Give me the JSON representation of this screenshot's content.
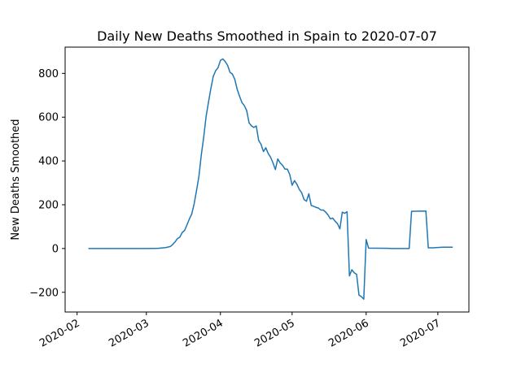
{
  "chart_data": {
    "type": "line",
    "title": "Daily New Deaths Smoothed in Spain to 2020-07-07",
    "xlabel": "",
    "ylabel": "New Deaths Smoothed",
    "x_ticks": [
      "2020-02",
      "2020-03",
      "2020-04",
      "2020-05",
      "2020-06",
      "2020-07"
    ],
    "y_ticks": [
      -200,
      0,
      200,
      400,
      600,
      800
    ],
    "xlim": [
      "2020-01-27",
      "2020-07-14"
    ],
    "ylim": [
      -290,
      920
    ],
    "grid": false,
    "color": "#1f77b4",
    "series": [
      {
        "points": [
          [
            "2020-02-06",
            0
          ],
          [
            "2020-02-15",
            0
          ],
          [
            "2020-02-25",
            0
          ],
          [
            "2020-03-01",
            0
          ],
          [
            "2020-03-06",
            1
          ],
          [
            "2020-03-09",
            4
          ],
          [
            "2020-03-11",
            9
          ],
          [
            "2020-03-12",
            18
          ],
          [
            "2020-03-13",
            30
          ],
          [
            "2020-03-14",
            45
          ],
          [
            "2020-03-15",
            52
          ],
          [
            "2020-03-16",
            73
          ],
          [
            "2020-03-17",
            83
          ],
          [
            "2020-03-18",
            108
          ],
          [
            "2020-03-19",
            135
          ],
          [
            "2020-03-20",
            158
          ],
          [
            "2020-03-21",
            204
          ],
          [
            "2020-03-22",
            265
          ],
          [
            "2020-03-23",
            330
          ],
          [
            "2020-03-24",
            428
          ],
          [
            "2020-03-25",
            508
          ],
          [
            "2020-03-26",
            603
          ],
          [
            "2020-03-27",
            668
          ],
          [
            "2020-03-28",
            731
          ],
          [
            "2020-03-29",
            786
          ],
          [
            "2020-03-30",
            812
          ],
          [
            "2020-03-31",
            826
          ],
          [
            "2020-04-01",
            859
          ],
          [
            "2020-04-02",
            866
          ],
          [
            "2020-04-03",
            854
          ],
          [
            "2020-04-04",
            837
          ],
          [
            "2020-04-05",
            805
          ],
          [
            "2020-04-06",
            797
          ],
          [
            "2020-04-07",
            773
          ],
          [
            "2020-04-08",
            728
          ],
          [
            "2020-04-09",
            696
          ],
          [
            "2020-04-10",
            667
          ],
          [
            "2020-04-11",
            653
          ],
          [
            "2020-04-12",
            630
          ],
          [
            "2020-04-13",
            574
          ],
          [
            "2020-04-14",
            560
          ],
          [
            "2020-04-15",
            553
          ],
          [
            "2020-04-16",
            560
          ],
          [
            "2020-04-17",
            494
          ],
          [
            "2020-04-18",
            476
          ],
          [
            "2020-04-19",
            443
          ],
          [
            "2020-04-20",
            460
          ],
          [
            "2020-04-21",
            434
          ],
          [
            "2020-04-22",
            417
          ],
          [
            "2020-04-23",
            391
          ],
          [
            "2020-04-24",
            361
          ],
          [
            "2020-04-25",
            409
          ],
          [
            "2020-04-26",
            391
          ],
          [
            "2020-04-27",
            380
          ],
          [
            "2020-04-28",
            363
          ],
          [
            "2020-04-29",
            363
          ],
          [
            "2020-04-30",
            339
          ],
          [
            "2020-05-01",
            289
          ],
          [
            "2020-05-02",
            310
          ],
          [
            "2020-05-03",
            294
          ],
          [
            "2020-05-04",
            270
          ],
          [
            "2020-05-05",
            255
          ],
          [
            "2020-05-06",
            224
          ],
          [
            "2020-05-07",
            216
          ],
          [
            "2020-05-08",
            250
          ],
          [
            "2020-05-09",
            197
          ],
          [
            "2020-05-10",
            193
          ],
          [
            "2020-05-11",
            188
          ],
          [
            "2020-05-12",
            185
          ],
          [
            "2020-05-13",
            176
          ],
          [
            "2020-05-14",
            176
          ],
          [
            "2020-05-15",
            167
          ],
          [
            "2020-05-16",
            154
          ],
          [
            "2020-05-17",
            136
          ],
          [
            "2020-05-18",
            139
          ],
          [
            "2020-05-19",
            125
          ],
          [
            "2020-05-20",
            113
          ],
          [
            "2020-05-21",
            90
          ],
          [
            "2020-05-22",
            166
          ],
          [
            "2020-05-23",
            161
          ],
          [
            "2020-05-24",
            168
          ],
          [
            "2020-05-25",
            -125
          ],
          [
            "2020-05-26",
            -97
          ],
          [
            "2020-05-27",
            -111
          ],
          [
            "2020-05-28",
            -118
          ],
          [
            "2020-05-29",
            -213
          ],
          [
            "2020-05-30",
            -220
          ],
          [
            "2020-05-31",
            -231
          ],
          [
            "2020-06-01",
            41
          ],
          [
            "2020-06-02",
            2
          ],
          [
            "2020-06-10",
            1
          ],
          [
            "2020-06-12",
            0
          ],
          [
            "2020-06-19",
            0
          ],
          [
            "2020-06-20",
            170
          ],
          [
            "2020-06-26",
            171
          ],
          [
            "2020-06-27",
            3
          ],
          [
            "2020-06-29",
            3
          ],
          [
            "2020-07-03",
            6
          ],
          [
            "2020-07-07",
            6
          ]
        ]
      }
    ]
  }
}
